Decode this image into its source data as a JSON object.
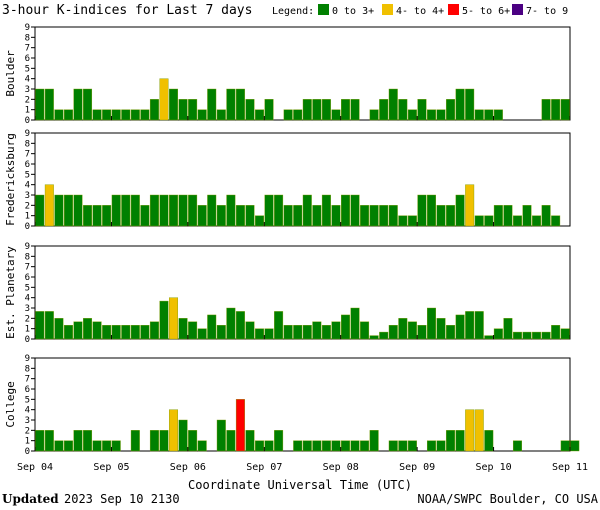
{
  "chart_data": {
    "type": "bar",
    "title": "3-hour K-indices for Last 7 days",
    "legend": {
      "label": "Legend:",
      "entries": [
        {
          "label": "0 to 3+",
          "color": "#008000"
        },
        {
          "label": "4- to 4+",
          "color": "#f0c000"
        },
        {
          "label": "5- to 6+",
          "color": "#ff0000"
        },
        {
          "label": "7- to 9",
          "color": "#4b0082"
        }
      ]
    },
    "xlabel": "Coordinate Universal Time (UTC)",
    "x_tick_labels": [
      "Sep 04",
      "Sep 05",
      "Sep 06",
      "Sep 07",
      "Sep 08",
      "Sep 09",
      "Sep 10",
      "Sep 11"
    ],
    "ylim": [
      0,
      9
    ],
    "y_ticks": [
      0,
      1,
      2,
      3,
      4,
      5,
      6,
      7,
      8,
      9
    ],
    "grid": false,
    "panels": [
      {
        "name": "Boulder",
        "values": [
          3,
          3,
          1,
          1,
          3,
          3,
          1,
          1,
          1,
          1,
          1,
          1,
          2,
          4,
          3,
          2,
          2,
          1,
          3,
          1,
          3,
          3,
          2,
          1,
          2,
          0,
          1,
          1,
          2,
          2,
          2,
          1,
          2,
          2,
          0,
          1,
          2,
          3,
          2,
          1,
          2,
          1,
          1,
          2,
          3,
          3,
          1,
          1,
          1,
          0,
          0,
          0,
          0,
          2,
          2,
          2,
          0
        ]
      },
      {
        "name": "Fredericksburg",
        "values": [
          3,
          4,
          3,
          3,
          3,
          2,
          2,
          2,
          3,
          3,
          3,
          2,
          3,
          3,
          3,
          3,
          3,
          2,
          3,
          2,
          3,
          2,
          2,
          1,
          3,
          3,
          2,
          2,
          3,
          2,
          3,
          2,
          3,
          3,
          2,
          2,
          2,
          2,
          1,
          1,
          3,
          3,
          2,
          2,
          3,
          4,
          1,
          1,
          2,
          2,
          1,
          2,
          1,
          2,
          1,
          0
        ]
      },
      {
        "name": "Est. Planetary",
        "values": [
          2.67,
          2.67,
          2,
          1.33,
          1.67,
          2,
          1.67,
          1.33,
          1.33,
          1.33,
          1.33,
          1.33,
          1.67,
          3.67,
          4,
          2,
          1.67,
          1,
          2.33,
          1.33,
          3,
          2.67,
          1.67,
          1,
          1,
          2.67,
          1.33,
          1.33,
          1.33,
          1.67,
          1.33,
          1.67,
          2.33,
          3,
          1.67,
          0.33,
          0.67,
          1.33,
          2,
          1.67,
          1.33,
          3,
          2,
          1.33,
          2.33,
          2.67,
          2.67,
          0.33,
          1,
          2,
          0.67,
          0.67,
          0.67,
          0.67,
          1.33,
          1
        ]
      },
      {
        "name": "College",
        "values": [
          2,
          2,
          1,
          1,
          2,
          2,
          1,
          1,
          1,
          0,
          2,
          0,
          2,
          2,
          4,
          3,
          2,
          1,
          0,
          3,
          2,
          5,
          2,
          1,
          1,
          2,
          0,
          1,
          1,
          1,
          1,
          1,
          1,
          1,
          1,
          2,
          0,
          1,
          1,
          1,
          0,
          1,
          1,
          2,
          2,
          4,
          4,
          2,
          0,
          0,
          1,
          0,
          0,
          0,
          0,
          1,
          1,
          0
        ]
      }
    ]
  },
  "footer": {
    "updated_label": "Updated",
    "updated_value": "2023 Sep 10 2130",
    "credit": "NOAA/SWPC Boulder, CO USA"
  }
}
